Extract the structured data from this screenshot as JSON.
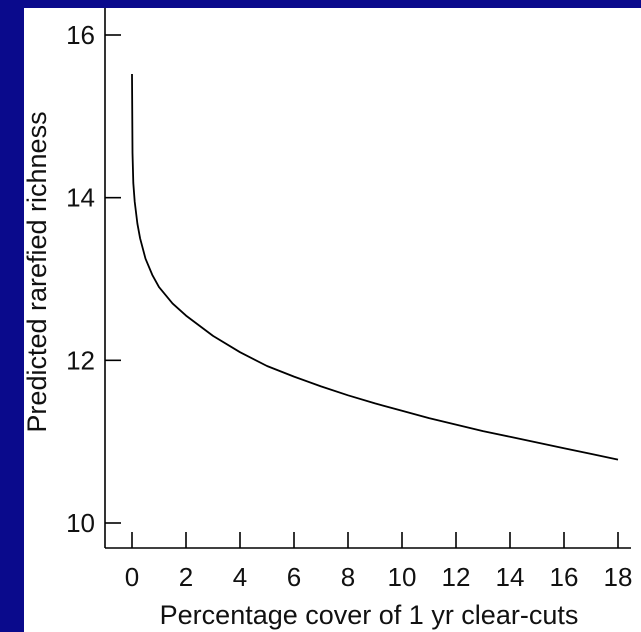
{
  "chart_data": {
    "type": "line",
    "title": "",
    "xlabel": "Percentage cover of 1 yr clear-cuts",
    "ylabel": "Predicted rarefied richness",
    "xlim": [
      -1,
      18.5
    ],
    "ylim": [
      9.7,
      16.3
    ],
    "xticks": [
      0,
      2,
      4,
      6,
      8,
      10,
      12,
      14,
      16,
      18
    ],
    "yticks": [
      10,
      12,
      14,
      16
    ],
    "xtick_labels": [
      "0",
      "2",
      "4",
      "6",
      "8",
      "10",
      "12",
      "14",
      "16",
      "18"
    ],
    "ytick_labels": [
      "10",
      "12",
      "14",
      "16"
    ],
    "grid": false,
    "legend": "none",
    "line_color": "#000000",
    "series": [
      {
        "x": [
          0,
          0.02,
          0.05,
          0.1,
          0.2,
          0.3,
          0.5,
          0.75,
          1,
          1.5,
          2,
          3,
          4,
          5,
          6,
          7,
          8,
          9,
          10,
          11,
          12,
          13,
          14,
          15,
          16,
          17,
          18
        ],
        "y": [
          15.52,
          14.55,
          14.18,
          13.95,
          13.68,
          13.5,
          13.25,
          13.05,
          12.9,
          12.7,
          12.55,
          12.3,
          12.1,
          11.93,
          11.8,
          11.68,
          11.57,
          11.47,
          11.38,
          11.29,
          11.21,
          11.13,
          11.06,
          10.99,
          10.92,
          10.85,
          10.78
        ]
      }
    ]
  }
}
